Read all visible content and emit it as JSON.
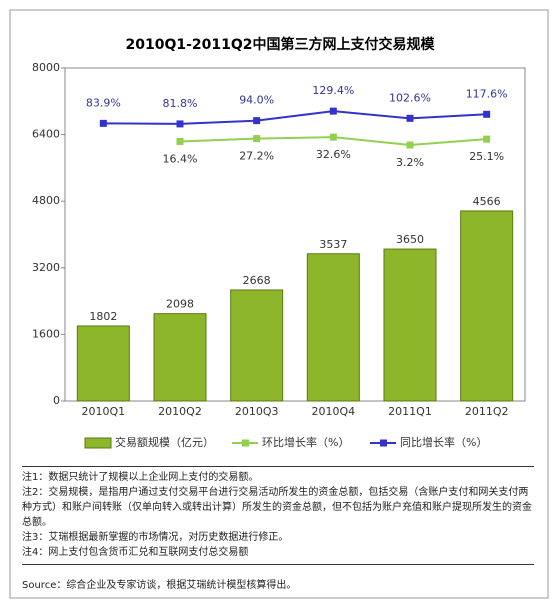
{
  "chart_data": {
    "type": "bar",
    "title": "2010Q1-2011Q2中国第三方网上支付交易规模",
    "categories": [
      "2010Q1",
      "2010Q2",
      "2010Q3",
      "2010Q4",
      "2011Q1",
      "2011Q2"
    ],
    "ylim": [
      0,
      8000
    ],
    "yticks": [
      0,
      1600,
      3200,
      4800,
      6400,
      8000
    ],
    "y2lim": [
      -950,
      290
    ],
    "series": [
      {
        "name": "交易额规模（亿元）",
        "type": "bar",
        "color": "#8db62a",
        "values": [
          1802,
          2098,
          2668,
          3537,
          3650,
          4566
        ]
      },
      {
        "name": "环比增长率（%）",
        "type": "line",
        "axis": "y2",
        "color": "#92d050",
        "values": [
          null,
          16.4,
          27.2,
          32.6,
          3.2,
          25.1
        ],
        "value_labels": [
          null,
          "16.4%",
          "27.2%",
          "32.6%",
          "3.2%",
          "25.1%"
        ]
      },
      {
        "name": "同比增长率（%）",
        "type": "line",
        "axis": "y2",
        "color": "#3333cc",
        "values": [
          83.9,
          81.8,
          94.0,
          129.4,
          102.6,
          117.6
        ],
        "value_labels": [
          "83.9%",
          "81.8%",
          "94.0%",
          "129.4%",
          "102.6%",
          "117.6%"
        ]
      }
    ]
  },
  "notes": [
    "注1：数据只统计了规模以上企业网上支付的交易额。",
    "注2：交易规模，是指用户通过支付交易平台进行交易活动所发生的资金总额，包括交易（含账户支付和网关支付两种方式）和账户间转账（仅单向转入或转出计算）所发生的资金总额，但不包括为账户充值和账户提现所发生的资金总额。",
    "注3：艾瑞根据最新掌握的市场情况，对历史数据进行修正。",
    "注4：网上支付包含货币汇兑和互联网支付总交易额"
  ],
  "source": "Source：综合企业及专家访谈，根据艾瑞统计模型核算得出。"
}
